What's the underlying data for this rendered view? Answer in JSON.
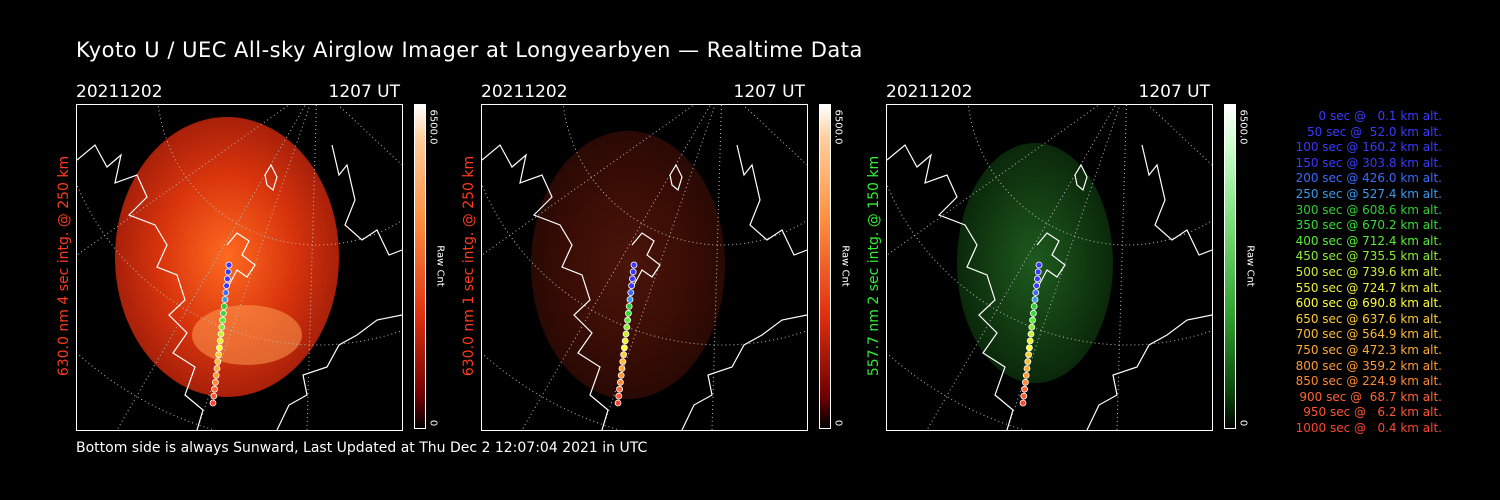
{
  "title": "Kyoto U / UEC All-sky Airglow Imager at Longyearbyen — Realtime Data",
  "footer": "Bottom side is always Sunward, Last Updated at Thu Dec  2 12:07:04 2021 in UTC",
  "panels": [
    {
      "date": "20211202",
      "time": "1207 UT",
      "label": "630.0 nm 4 sec intg. @ 250 km",
      "label_color": "#ff3a1a",
      "cbar_max": "6500.0",
      "cbar_min": "0",
      "cbar_unit": "Raw Cnt",
      "glow": "red-bright"
    },
    {
      "date": "20211202",
      "time": "1207 UT",
      "label": "630.0 nm 1 sec intg. @ 250 km",
      "label_color": "#ff3a1a",
      "cbar_max": "6500.0",
      "cbar_min": "0",
      "cbar_unit": "Raw Cnt",
      "glow": "red-dim"
    },
    {
      "date": "20211202",
      "time": "1207 UT",
      "label": "557.7 nm 2 sec intg. @ 150 km",
      "label_color": "#33ee33",
      "cbar_max": "6500.0",
      "cbar_min": "0",
      "cbar_unit": "Raw Cnt",
      "glow": "green"
    }
  ],
  "legend": [
    {
      "text": "0 sec @   0.1 km alt.",
      "color": "#3a3aff"
    },
    {
      "text": "50 sec @  52.0 km alt.",
      "color": "#3a3aff"
    },
    {
      "text": "100 sec @ 160.2 km alt.",
      "color": "#3a3aff"
    },
    {
      "text": "150 sec @ 303.8 km alt.",
      "color": "#3a3aff"
    },
    {
      "text": "200 sec @ 426.0 km alt.",
      "color": "#3a6aff"
    },
    {
      "text": "250 sec @ 527.4 km alt.",
      "color": "#3a9aee"
    },
    {
      "text": "300 sec @ 608.6 km alt.",
      "color": "#33cc33"
    },
    {
      "text": "350 sec @ 670.2 km alt.",
      "color": "#33dd33"
    },
    {
      "text": "400 sec @ 712.4 km alt.",
      "color": "#55ee33"
    },
    {
      "text": "450 sec @ 735.5 km alt.",
      "color": "#88ee33"
    },
    {
      "text": "500 sec @ 739.6 km alt.",
      "color": "#ccee33"
    },
    {
      "text": "550 sec @ 724.7 km alt.",
      "color": "#eeee33"
    },
    {
      "text": "600 sec @ 690.8 km alt.",
      "color": "#ffff33"
    },
    {
      "text": "650 sec @ 637.6 km alt.",
      "color": "#ffcc33"
    },
    {
      "text": "700 sec @ 564.9 km alt.",
      "color": "#ffbb33"
    },
    {
      "text": "750 sec @ 472.3 km alt.",
      "color": "#ffaa33"
    },
    {
      "text": "800 sec @ 359.2 km alt.",
      "color": "#ff9933"
    },
    {
      "text": "850 sec @ 224.9 km alt.",
      "color": "#ff8833"
    },
    {
      "text": "900 sec @  68.7 km alt.",
      "color": "#ff6633"
    },
    {
      "text": "950 sec @   6.2 km alt.",
      "color": "#ff5533"
    },
    {
      "text": "1000 sec @   0.4 km alt.",
      "color": "#ff4433"
    }
  ]
}
